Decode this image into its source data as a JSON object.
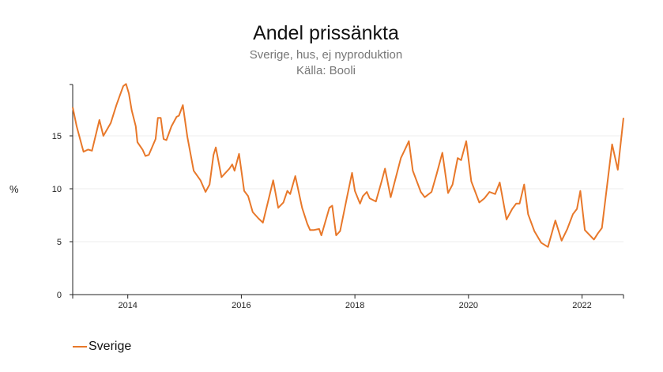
{
  "chart_data": {
    "type": "line",
    "title": "Andel prissänkta",
    "subtitle": [
      "Sverige, hus, ej nyproduktion",
      "Källa: Booli"
    ],
    "xlabel": "",
    "ylabel": "%",
    "xlim": [
      2013.03,
      2022.73
    ],
    "ylim": [
      0,
      19.85
    ],
    "xticks": [
      2014,
      2016,
      2018,
      2020,
      2022
    ],
    "xtick_labels": [
      "2014",
      "2016",
      "2018",
      "2020",
      "2022"
    ],
    "yticks": [
      0,
      5,
      10,
      15
    ],
    "ytick_labels": [
      "0",
      "5",
      "10",
      "15"
    ],
    "grid": "horizontal",
    "legend": "bottom-left",
    "series": [
      {
        "name": "Sverige",
        "color": "#e8782a",
        "x": [
          2013.03,
          2013.1,
          2013.2,
          2013.22,
          2013.3,
          2013.37,
          2013.5,
          2013.57,
          2013.7,
          2013.8,
          2013.86,
          2013.92,
          2013.97,
          2014.02,
          2014.07,
          2014.14,
          2014.17,
          2014.26,
          2014.31,
          2014.37,
          2014.49,
          2014.53,
          2014.58,
          2014.63,
          2014.68,
          2014.77,
          2014.86,
          2014.9,
          2014.97,
          2015.05,
          2015.16,
          2015.28,
          2015.37,
          2015.44,
          2015.51,
          2015.55,
          2015.65,
          2015.79,
          2015.84,
          2015.88,
          2015.96,
          2016.05,
          2016.12,
          2016.2,
          2016.3,
          2016.38,
          2016.48,
          2016.56,
          2016.65,
          2016.74,
          2016.81,
          2016.86,
          2016.95,
          2017.07,
          2017.16,
          2017.21,
          2017.27,
          2017.37,
          2017.41,
          2017.55,
          2017.6,
          2017.67,
          2017.74,
          2017.86,
          2017.95,
          2018.0,
          2018.09,
          2018.14,
          2018.21,
          2018.26,
          2018.37,
          2018.47,
          2018.53,
          2018.63,
          2018.81,
          2018.88,
          2018.95,
          2019.02,
          2019.16,
          2019.23,
          2019.35,
          2019.44,
          2019.54,
          2019.64,
          2019.72,
          2019.81,
          2019.87,
          2019.96,
          2020.05,
          2020.19,
          2020.28,
          2020.37,
          2020.47,
          2020.55,
          2020.67,
          2020.77,
          2020.84,
          2020.9,
          2020.98,
          2021.05,
          2021.16,
          2021.28,
          2021.4,
          2021.53,
          2021.64,
          2021.74,
          2021.84,
          2021.91,
          2021.97,
          2022.05,
          2022.21,
          2022.28,
          2022.35,
          2022.53,
          2022.63,
          2022.73
        ],
        "y": [
          17.7,
          15.9,
          13.9,
          13.5,
          13.7,
          13.6,
          16.5,
          15.0,
          16.2,
          17.9,
          18.8,
          19.7,
          19.9,
          19.0,
          17.4,
          15.9,
          14.4,
          13.7,
          13.1,
          13.2,
          14.7,
          16.7,
          16.7,
          14.7,
          14.6,
          15.9,
          16.8,
          16.9,
          17.9,
          14.9,
          11.7,
          10.8,
          9.7,
          10.4,
          13.2,
          13.9,
          11.1,
          11.9,
          12.3,
          11.7,
          13.3,
          9.8,
          9.3,
          7.8,
          7.2,
          6.8,
          9.0,
          10.8,
          8.2,
          8.7,
          9.8,
          9.5,
          11.2,
          8.2,
          6.7,
          6.1,
          6.1,
          6.2,
          5.6,
          8.2,
          8.4,
          5.6,
          6.0,
          9.2,
          11.5,
          9.8,
          8.6,
          9.3,
          9.7,
          9.1,
          8.8,
          10.7,
          11.9,
          9.2,
          12.9,
          13.7,
          14.5,
          11.7,
          9.7,
          9.2,
          9.7,
          11.4,
          13.4,
          9.6,
          10.4,
          12.9,
          12.7,
          14.5,
          10.7,
          8.7,
          9.1,
          9.7,
          9.5,
          10.6,
          7.1,
          8.1,
          8.6,
          8.6,
          10.4,
          7.6,
          6.0,
          4.9,
          4.5,
          7.0,
          5.1,
          6.2,
          7.6,
          8.1,
          9.8,
          6.1,
          5.2,
          5.8,
          6.3,
          14.2,
          11.8,
          16.7
        ]
      }
    ]
  }
}
